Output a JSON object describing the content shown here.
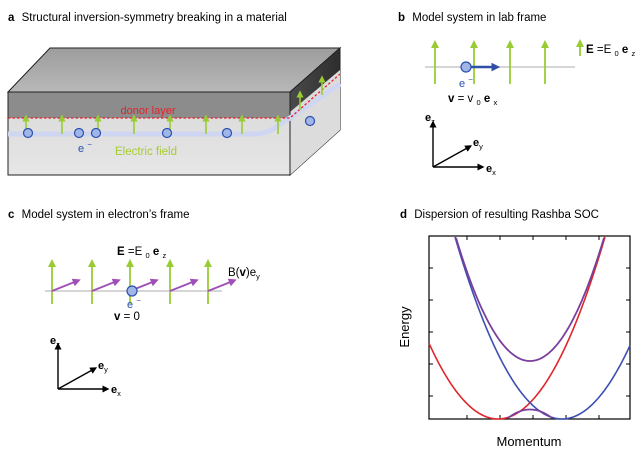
{
  "colors": {
    "green_arrow": "#99cc33",
    "purple_arrow": "#a04fb8",
    "electron_fill": "#9fb6e6",
    "electron_stroke": "#2c4fb0",
    "donor_red": "#e8202a",
    "red_curve": "#e0262b",
    "blue_curve": "#3d4fb0",
    "field_label_green": "#a6cc33",
    "dark_blue_arrow": "#2f4fa8"
  },
  "panel_a": {
    "letter": "a",
    "title": "Structural inversion-symmetry breaking in a material",
    "donor_label": "donor layer",
    "electron_label": "e",
    "electron_sup": "−",
    "field_label": "Electric field"
  },
  "panel_b": {
    "letter": "b",
    "title": "Model system in lab frame",
    "field_bold": "E",
    "field_eq": "=E",
    "field_sub": "0",
    "field_vec": "e",
    "field_vec_sub": "z",
    "electron_label": "e",
    "electron_sup": "−",
    "v_bold": "v",
    "v_eq": " = v",
    "v_sub": "0",
    "v_vec": "e",
    "v_vec_sub": "x",
    "axes": {
      "z": "e",
      "z_sub": "z",
      "y": "e",
      "y_sub": "y",
      "x": "e",
      "x_sub": "x"
    }
  },
  "panel_c": {
    "letter": "c",
    "title": "Model system in electron’s frame",
    "field_bold": "E",
    "field_eq": "=E",
    "field_sub": "0",
    "field_vec": "e",
    "field_vec_sub": "z",
    "b_label_pre": "B(",
    "b_label_bold": "v",
    "b_label_post": ")e",
    "b_label_sub": "y",
    "electron_label": "e",
    "electron_sup": "−",
    "v_bold": "v",
    "v_rest": " = 0",
    "axes": {
      "z": "e",
      "z_sub": "z",
      "y": "e",
      "y_sub": "y",
      "x": "e",
      "x_sub": "x"
    }
  },
  "panel_d": {
    "letter": "d",
    "title": "Dispersion of resulting Rashba SOC",
    "ylabel": "Energy",
    "xlabel": "Momentum"
  }
}
